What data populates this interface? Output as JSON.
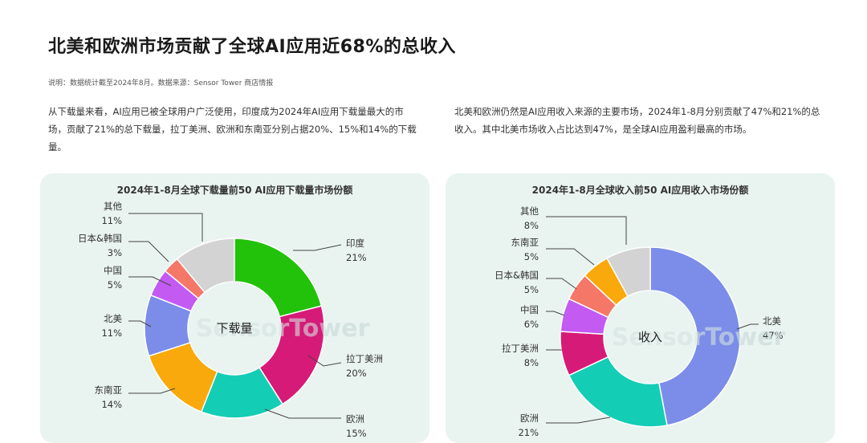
{
  "header": {
    "title": "北美和欧洲市场贡献了全球AI应用近68%的总收入",
    "note": "说明：数据统计截至2024年8月。数据来源：Sensor Tower 商店情报"
  },
  "paragraphs": {
    "left": "从下载量来看，AI应用已被全球用户广泛使用，印度成为2024年AI应用下载量最大的市场，贡献了21%的总下载量，拉丁美洲、欧洲和东南亚分别占据20%、15%和14%的下载量。",
    "right": "北美和欧洲仍然是AI应用收入来源的主要市场，2024年1-8月分别贡献了47%和21%的总收入。其中北美市场收入占比达到47%，是全球AI应用盈利最高的市场。"
  },
  "watermark": "SensorTower",
  "chart_data": [
    {
      "type": "pie",
      "donut": true,
      "title": "2024年1-8月全球下载量前50 AI应用下载量市场份额",
      "center_label": "下载量",
      "unit": "%",
      "slices": [
        {
          "label": "印度",
          "value": 21,
          "color": "#22c10a"
        },
        {
          "label": "拉丁美洲",
          "value": 20,
          "color": "#d61a78"
        },
        {
          "label": "欧洲",
          "value": 15,
          "color": "#14cdb5"
        },
        {
          "label": "东南亚",
          "value": 14,
          "color": "#f9a90b"
        },
        {
          "label": "北美",
          "value": 11,
          "color": "#7b8de8"
        },
        {
          "label": "中国",
          "value": 5,
          "color": "#c35af2"
        },
        {
          "label": "日本&韩国",
          "value": 3,
          "color": "#f57768"
        },
        {
          "label": "其他",
          "value": 11,
          "color": "#d3d3d3"
        }
      ]
    },
    {
      "type": "pie",
      "donut": true,
      "title": "2024年1-8月全球收入前50 AI应用收入市场份额",
      "center_label": "收入",
      "unit": "%",
      "slices": [
        {
          "label": "北美",
          "value": 47,
          "color": "#7b8de8"
        },
        {
          "label": "欧洲",
          "value": 21,
          "color": "#14cdb5"
        },
        {
          "label": "拉丁美洲",
          "value": 8,
          "color": "#d61a78"
        },
        {
          "label": "中国",
          "value": 6,
          "color": "#c35af2"
        },
        {
          "label": "日本&韩国",
          "value": 5,
          "color": "#f57768"
        },
        {
          "label": "东南亚",
          "value": 5,
          "color": "#f9a90b"
        },
        {
          "label": "其他",
          "value": 8,
          "color": "#d3d3d3"
        }
      ]
    }
  ]
}
